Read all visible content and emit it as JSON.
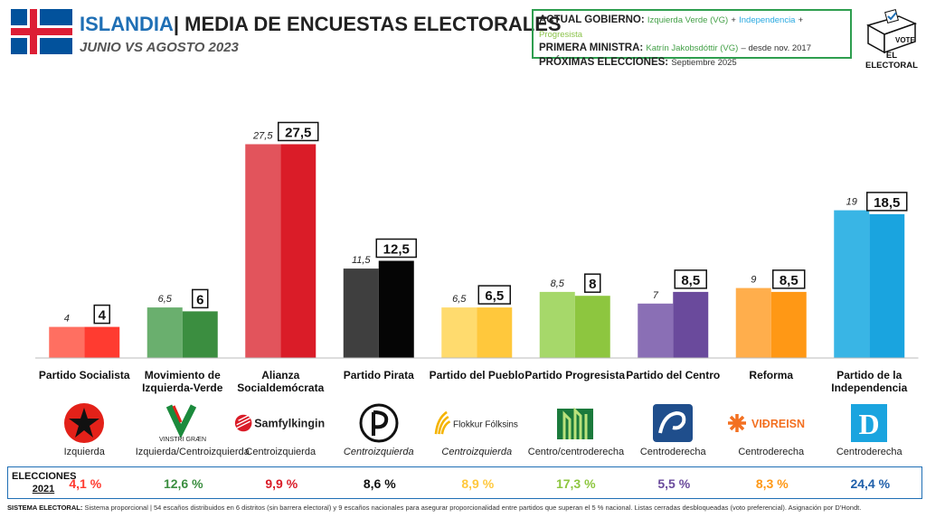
{
  "header": {
    "country": "ISLANDIA",
    "title": "| MEDIA DE ENCUESTAS ELECTORALES",
    "subtitle": "JUNIO VS AGOSTO 2023"
  },
  "info": {
    "gov_label": "ACTUAL GOBIERNO:",
    "gov_vg": "Izquierda Verde (VG)",
    "plus": "+",
    "gov_ind": "Independencia",
    "gov_prog": "Progresista",
    "pm_label": "PRIMERA MINISTRA:",
    "pm_name": "Katrín Jakobsdóttir (VG)",
    "pm_since": "– desde nov. 2017",
    "next_label": "PRÓXIMAS ELECCIONES:",
    "next_date": "Septiembre 2025"
  },
  "logo": {
    "text": "EL ELECTORAL",
    "box_text": "VOTE"
  },
  "chart_data": {
    "type": "bar",
    "categories": [
      "Partido Socialista",
      "Movimiento de Izquierda-Verde",
      "Alianza Socialdemócrata",
      "Partido Pirata",
      "Partido del Pueblo",
      "Partido Progresista",
      "Partido del Centro",
      "Reforma",
      "Partido de la Independencia"
    ],
    "category_lines": [
      [
        "Partido Socialista"
      ],
      [
        "Movimiento de",
        "Izquierda-Verde"
      ],
      [
        "Alianza",
        "Socialdemócrata"
      ],
      [
        "Partido Pirata"
      ],
      [
        "Partido del Pueblo"
      ],
      [
        "Partido Progresista"
      ],
      [
        "Partido del Centro"
      ],
      [
        "Reforma"
      ],
      [
        "Partido de la",
        "Independencia"
      ]
    ],
    "series": [
      {
        "values": [
          4,
          6.5,
          27.5,
          11.5,
          6.5,
          8.5,
          7,
          9,
          19
        ],
        "labels": [
          "4",
          "6,5",
          "27,5",
          "11,5",
          "6,5",
          "8,5",
          "7",
          "9",
          "19"
        ]
      },
      {
        "values": [
          4,
          6,
          27.5,
          12.5,
          6.5,
          8,
          8.5,
          8.5,
          18.5
        ],
        "labels": [
          "4",
          "6",
          "27,5",
          "12,5",
          "6,5",
          "8",
          "8,5",
          "8,5",
          "18,5"
        ]
      }
    ],
    "colors_light": [
      "#FF6F61",
      "#6AAF6E",
      "#E2545C",
      "#3F3F3F",
      "#FFDB6E",
      "#A6D86A",
      "#8A6FB5",
      "#FFAE4C",
      "#39B5E5"
    ],
    "colors_dark": [
      "#FF3B30",
      "#3B8E40",
      "#DA1C28",
      "#050505",
      "#FFC83C",
      "#8DC63F",
      "#6A4A9C",
      "#FF9815",
      "#1AA4DF"
    ],
    "ylim": [
      0,
      28
    ]
  },
  "parties": [
    {
      "ideology": "Izquierda",
      "italic": false,
      "logo": "red-star-icon"
    },
    {
      "ideology": "Izquierda/Centroizquierda",
      "italic": false,
      "logo": "vinstri-graen-icon",
      "logo_text": "VINSTRI GRÆN"
    },
    {
      "ideology": "Centroizquierda",
      "italic": false,
      "logo": "samfylkingin-icon",
      "logo_text": "Samfylkingin"
    },
    {
      "ideology": "Centroizquierda",
      "italic": true,
      "logo": "pirate-flag-icon"
    },
    {
      "ideology": "Centroizquierda",
      "italic": true,
      "logo": "flokkur-folksins-icon",
      "logo_text": "Flokkur Fólksins"
    },
    {
      "ideology": "Centro/centroderecha",
      "italic": false,
      "logo": "progressive-logo-icon"
    },
    {
      "ideology": "Centroderecha",
      "italic": false,
      "logo": "centre-party-icon"
    },
    {
      "ideology": "Centroderecha",
      "italic": false,
      "logo": "vidreisn-icon",
      "logo_text": "VIÐREISN"
    },
    {
      "ideology": "Centroderecha",
      "italic": false,
      "logo": "independence-d-icon",
      "logo_text": "D"
    }
  ],
  "results": {
    "label_line1": "ELECCIONES",
    "label_line2": "2021",
    "values": [
      "4,1 %",
      "12,6 %",
      "9,9 %",
      "8,6 %",
      "8,9 %",
      "17,3 %",
      "5,5 %",
      "8,3 %",
      "24,4 %"
    ],
    "colors": [
      "#FF3B30",
      "#3B8E40",
      "#DA1C28",
      "#111111",
      "#FFC83C",
      "#8DC63F",
      "#6A4A9C",
      "#FF9815",
      "#1F5FAA"
    ]
  },
  "footer": {
    "label": "SISTEMA ELECTORAL:",
    "text": "Sistema proporcional | 54 escaños distribuidos en 6 distritos (sin barrera electoral) y 9 escaños nacionales para asegurar proporcionalidad entre partidos que superan el 5 % nacional. Listas cerradas desbloqueadas (voto preferencial). Asignación por D'Hondt."
  }
}
